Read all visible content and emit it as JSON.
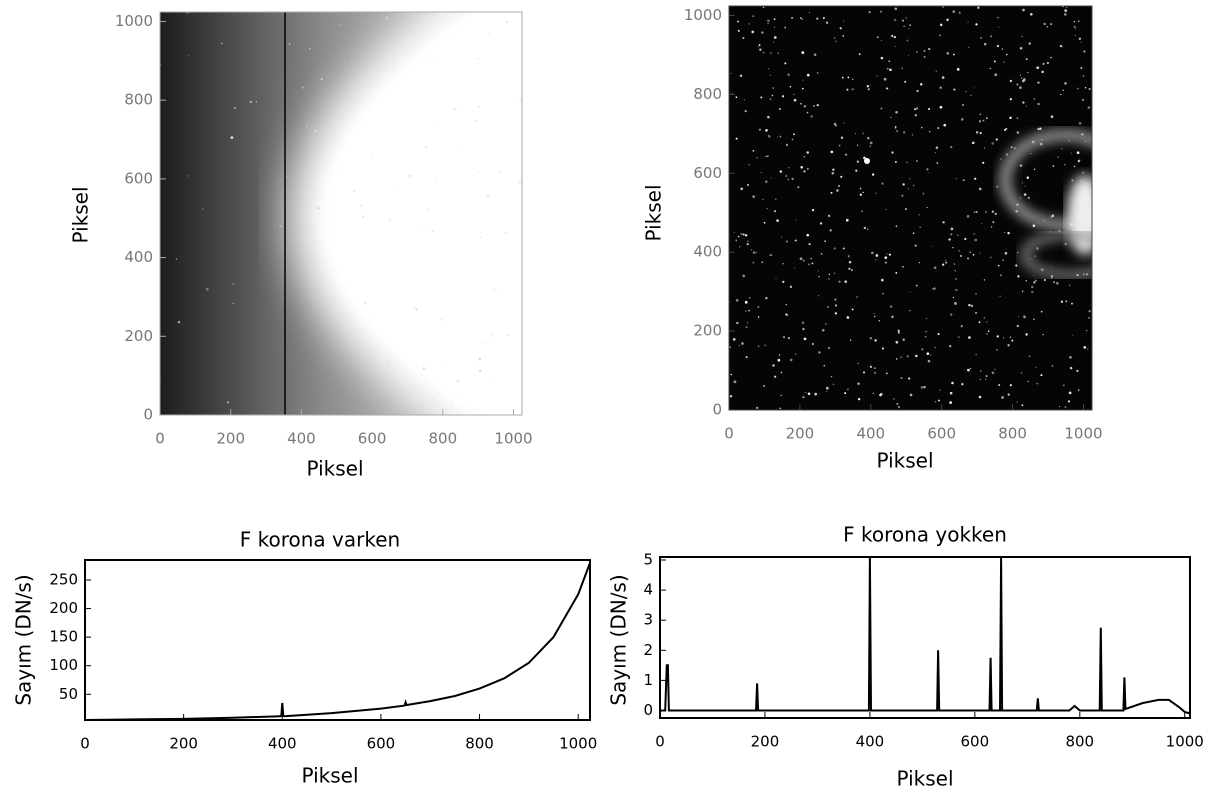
{
  "chart_data": [
    {
      "type": "image",
      "xlabel": "Piksel",
      "ylabel": "Piksel",
      "xlim": [
        0,
        1024
      ],
      "ylim": [
        0,
        1024
      ],
      "xticks": [
        0,
        200,
        400,
        600,
        800,
        1000
      ],
      "yticks": [
        0,
        200,
        400,
        600,
        800,
        1000
      ]
    },
    {
      "type": "image",
      "xlabel": "Piksel",
      "ylabel": "Piksel",
      "xlim": [
        0,
        1024
      ],
      "ylim": [
        0,
        1024
      ],
      "xticks": [
        0,
        200,
        400,
        600,
        800,
        1000
      ],
      "yticks": [
        0,
        200,
        400,
        600,
        800,
        1000
      ]
    },
    {
      "type": "line",
      "title": "F korona varken",
      "xlabel": "Piksel",
      "ylabel": "Sayım (DN/s)",
      "color": "#000000",
      "xlim": [
        0,
        1024
      ],
      "ylim": [
        5,
        285
      ],
      "xticks": [
        0,
        200,
        400,
        600,
        800,
        1000
      ],
      "yticks": [
        50,
        100,
        150,
        200,
        250
      ],
      "x": [
        0,
        100,
        200,
        300,
        396,
        398,
        400,
        402,
        404,
        500,
        600,
        646,
        648,
        650,
        652,
        654,
        700,
        750,
        800,
        850,
        900,
        950,
        1000,
        1024
      ],
      "values": [
        5,
        6,
        7,
        9,
        11.5,
        12,
        35,
        12,
        11.5,
        17,
        25,
        30,
        30.5,
        36,
        31,
        31.5,
        38,
        47,
        60,
        78,
        105,
        150,
        225,
        280
      ]
    },
    {
      "type": "line",
      "title": "F korona yokken",
      "xlabel": "Piksel",
      "ylabel": "Sayım (DN/s)",
      "color": "#000000",
      "xlim": [
        0,
        1010
      ],
      "ylim": [
        -0.25,
        5.1
      ],
      "xticks": [
        0,
        200,
        400,
        600,
        800,
        1000
      ],
      "yticks": [
        0,
        1,
        2,
        3,
        4,
        5
      ],
      "x": [
        0,
        10,
        13,
        15,
        17,
        20,
        100,
        183,
        185,
        187,
        300,
        398,
        400,
        402,
        528,
        530,
        532,
        628,
        630,
        632,
        648,
        650,
        652,
        718,
        720,
        722,
        780,
        790,
        800,
        838,
        840,
        842,
        883,
        885,
        887,
        920,
        950,
        970,
        990,
        1000,
        1010
      ],
      "values": [
        0,
        0,
        1.5,
        1.5,
        0,
        0,
        0,
        0,
        0.9,
        0,
        0,
        0,
        5.1,
        0,
        0,
        2.0,
        0,
        0,
        1.75,
        0,
        0,
        5.1,
        0,
        0,
        0.4,
        0,
        0,
        0.15,
        0,
        0,
        2.75,
        0,
        0,
        1.1,
        0.05,
        0.25,
        0.35,
        0.35,
        0.1,
        -0.05,
        -0.1
      ]
    }
  ]
}
